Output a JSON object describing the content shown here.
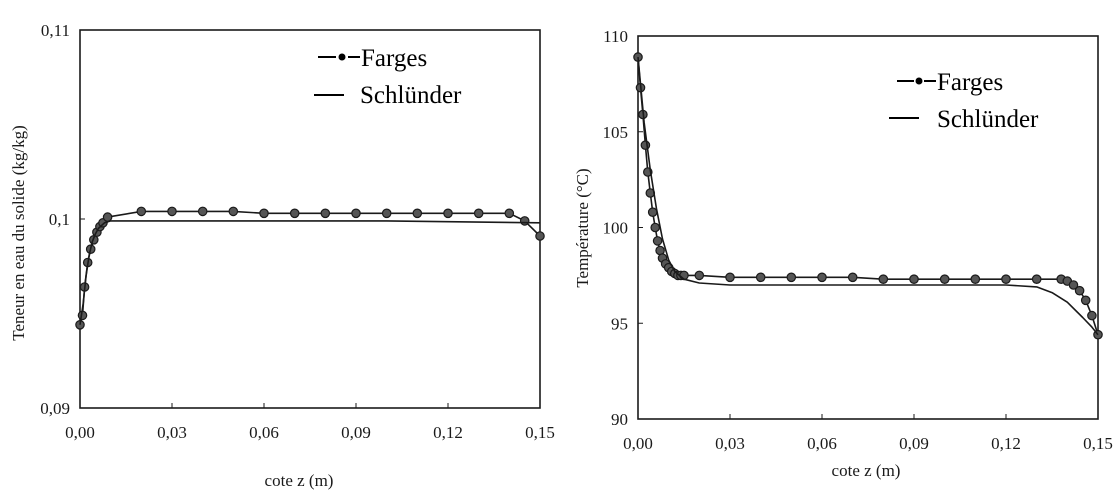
{
  "colors": {
    "ink": "#1a1a1a",
    "marker_fill": "#555555",
    "background": "#ffffff"
  },
  "chart_data": [
    {
      "type": "line",
      "ylabel": "Teneur en eau du solide (kg/kg)",
      "xlabel": "cote z (m)",
      "xlim": [
        0,
        0.15
      ],
      "ylim": [
        0.09,
        0.11
      ],
      "x_ticks": [
        "0,00",
        "0,03",
        "0,06",
        "0,09",
        "0,12",
        "0,15"
      ],
      "y_ticks": [
        "0,09",
        "0,1",
        "0,11"
      ],
      "x_tick_values": [
        0,
        0.03,
        0.06,
        0.09,
        0.12,
        0.15
      ],
      "y_tick_values": [
        0.09,
        0.1,
        0.11
      ],
      "grid": false,
      "legend_position": "top-right",
      "series": [
        {
          "name": "Farges",
          "style": "line-with-markers",
          "x": [
            0.0,
            0.0008,
            0.0015,
            0.0025,
            0.0035,
            0.0045,
            0.0055,
            0.0065,
            0.0075,
            0.009,
            0.02,
            0.03,
            0.04,
            0.05,
            0.06,
            0.07,
            0.08,
            0.09,
            0.1,
            0.11,
            0.12,
            0.13,
            0.14,
            0.145,
            0.15
          ],
          "y": [
            0.0944,
            0.0949,
            0.0964,
            0.0977,
            0.0984,
            0.0989,
            0.0993,
            0.0996,
            0.0998,
            0.1001,
            0.1004,
            0.1004,
            0.1004,
            0.1004,
            0.1003,
            0.1003,
            0.1003,
            0.1003,
            0.1003,
            0.1003,
            0.1003,
            0.1003,
            0.1003,
            0.0999,
            0.0991
          ]
        },
        {
          "name": "Schlünder",
          "style": "line",
          "x": [
            0.0,
            0.001,
            0.002,
            0.003,
            0.004,
            0.005,
            0.006,
            0.008,
            0.01,
            0.02,
            0.05,
            0.1,
            0.15
          ],
          "y": [
            0.0944,
            0.0955,
            0.097,
            0.0981,
            0.0988,
            0.0992,
            0.0995,
            0.0998,
            0.0999,
            0.0999,
            0.0999,
            0.0999,
            0.0998
          ]
        }
      ]
    },
    {
      "type": "line",
      "ylabel": "Température (°C)",
      "xlabel": "cote z (m)",
      "xlim": [
        0,
        0.15
      ],
      "ylim": [
        90,
        110
      ],
      "x_ticks": [
        "0,00",
        "0,03",
        "0,06",
        "0,09",
        "0,12",
        "0,15"
      ],
      "y_ticks": [
        "90",
        "95",
        "100",
        "105",
        "110"
      ],
      "x_tick_values": [
        0,
        0.03,
        0.06,
        0.09,
        0.12,
        0.15
      ],
      "y_tick_values": [
        90,
        95,
        100,
        105,
        110
      ],
      "grid": false,
      "legend_position": "top-right",
      "series": [
        {
          "name": "Farges",
          "style": "line-with-markers",
          "x": [
            0.0,
            0.0008,
            0.0016,
            0.0024,
            0.0032,
            0.004,
            0.0048,
            0.0056,
            0.0064,
            0.0072,
            0.008,
            0.009,
            0.01,
            0.011,
            0.012,
            0.013,
            0.014,
            0.015,
            0.02,
            0.03,
            0.04,
            0.05,
            0.06,
            0.07,
            0.08,
            0.09,
            0.1,
            0.11,
            0.12,
            0.13,
            0.138,
            0.14,
            0.142,
            0.144,
            0.146,
            0.148,
            0.15
          ],
          "y": [
            108.9,
            107.3,
            105.9,
            104.3,
            102.9,
            101.8,
            100.8,
            100.0,
            99.3,
            98.8,
            98.4,
            98.1,
            97.9,
            97.7,
            97.6,
            97.5,
            97.5,
            97.5,
            97.5,
            97.4,
            97.4,
            97.4,
            97.4,
            97.4,
            97.3,
            97.3,
            97.3,
            97.3,
            97.3,
            97.3,
            97.3,
            97.2,
            97.0,
            96.7,
            96.2,
            95.4,
            94.4
          ]
        },
        {
          "name": "Schlünder",
          "style": "line",
          "x": [
            0.0,
            0.002,
            0.004,
            0.006,
            0.008,
            0.01,
            0.012,
            0.015,
            0.02,
            0.03,
            0.06,
            0.09,
            0.12,
            0.13,
            0.135,
            0.14,
            0.145,
            0.148,
            0.15
          ],
          "y": [
            108.9,
            105.5,
            103.0,
            101.0,
            99.4,
            98.3,
            97.7,
            97.3,
            97.1,
            97.0,
            97.0,
            97.0,
            97.0,
            96.9,
            96.6,
            96.1,
            95.3,
            94.8,
            94.4
          ]
        }
      ]
    }
  ]
}
